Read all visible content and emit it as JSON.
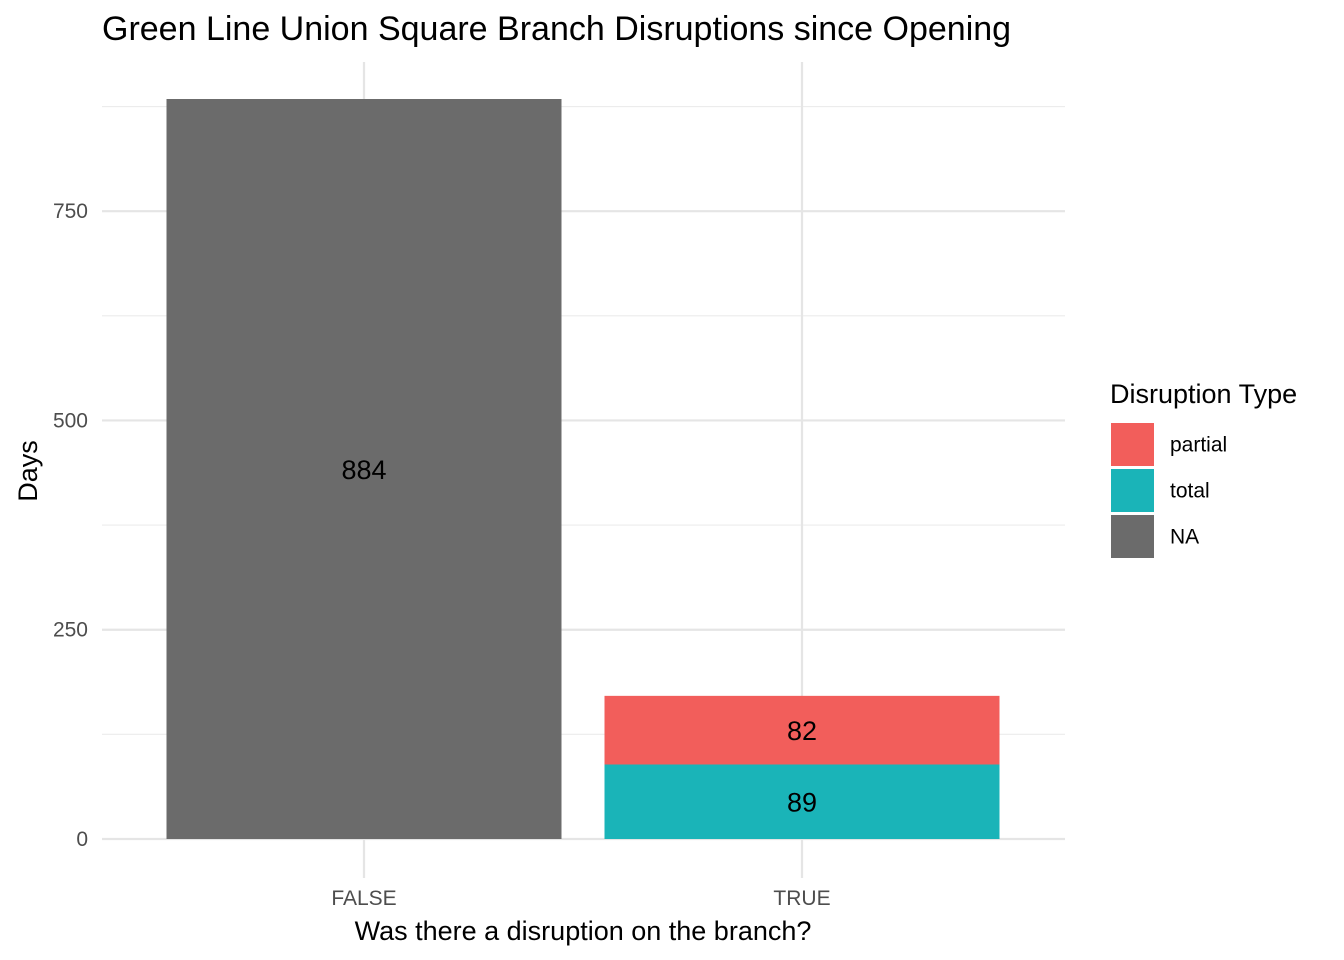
{
  "chart_data": {
    "type": "bar",
    "stacked": true,
    "title": "Green Line Union Square Branch Disruptions since Opening",
    "xlabel": "Was there a disruption on the branch?",
    "ylabel": "Days",
    "categories": [
      "FALSE",
      "TRUE"
    ],
    "series": [
      {
        "name": "partial",
        "values": [
          0,
          82
        ],
        "color": "#f25e5b"
      },
      {
        "name": "total",
        "values": [
          0,
          89
        ],
        "color": "#1ab4b8"
      },
      {
        "name": "NA",
        "values": [
          884,
          0
        ],
        "color": "#6b6b6b"
      }
    ],
    "stack_order_bottom_to_top": [
      "NA",
      "total",
      "partial"
    ],
    "yticks": [
      0,
      250,
      500,
      750
    ],
    "ylim": [
      0,
      929
    ],
    "grid": true,
    "legend": {
      "title": "Disruption Type",
      "position": "right",
      "entries": [
        "partial",
        "total",
        "NA"
      ]
    }
  }
}
